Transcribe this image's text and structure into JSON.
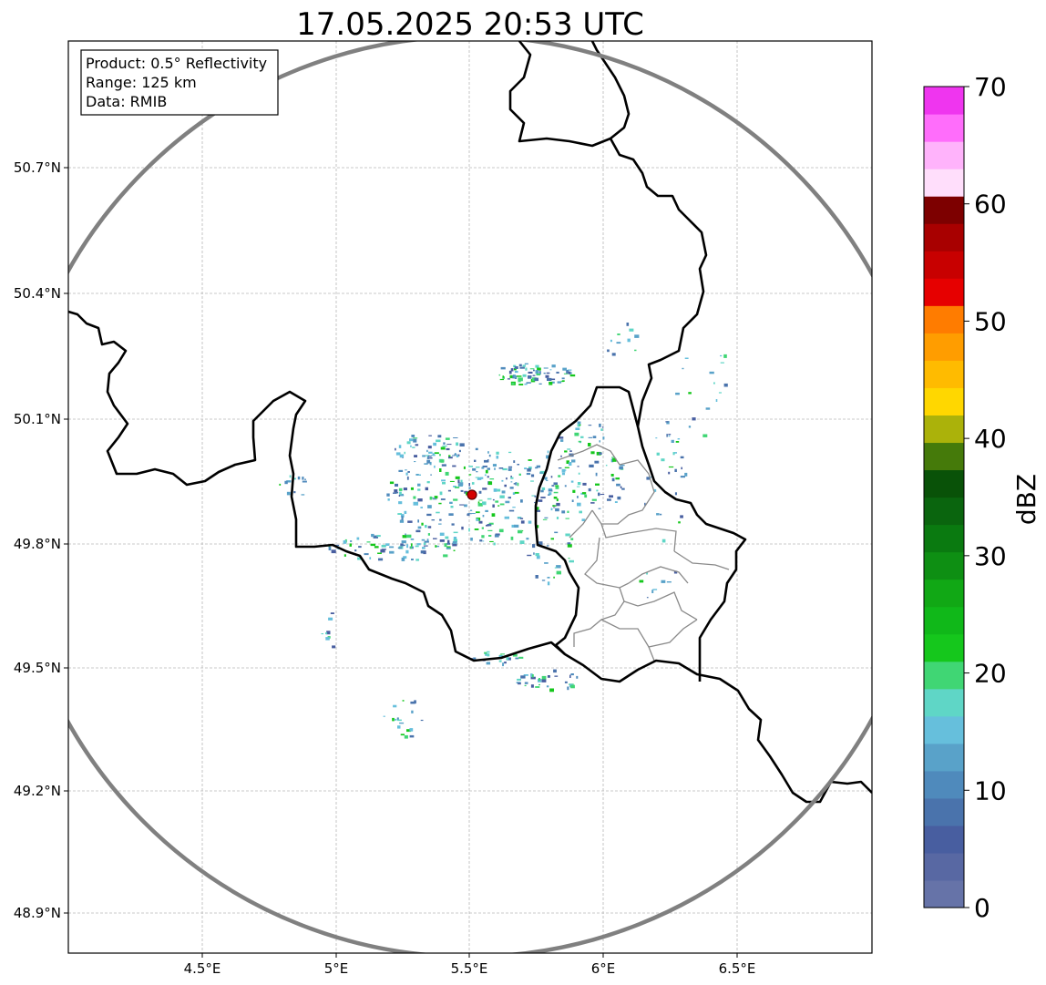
{
  "title": "17.05.2025 20:53 UTC",
  "info_box": {
    "product": "Product: 0.5° Reflectivity",
    "range": "Range: 125 km",
    "data": "Data: RMIB"
  },
  "axes": {
    "x_ticks": [
      "4.5°E",
      "5°E",
      "5.5°E",
      "6°E",
      "6.5°E"
    ],
    "y_ticks": [
      "50.7°N",
      "50.4°N",
      "50.1°N",
      "49.8°N",
      "49.5°N",
      "49.2°N",
      "48.9°N"
    ],
    "lon_range": [
      4.0,
      7.0
    ],
    "lat_range": [
      48.8,
      51.0
    ],
    "grid": true
  },
  "radar_site": {
    "lon": 5.5,
    "lat": 49.915,
    "color": "#d40000"
  },
  "colorbar": {
    "label": "dBZ",
    "min": 0,
    "max": 70,
    "step": 2.5,
    "tick_labels": [
      "0",
      "10",
      "20",
      "30",
      "40",
      "50",
      "60",
      "70"
    ],
    "colors": [
      "#6673a8",
      "#5868a3",
      "#485ea0",
      "#4a73ac",
      "#4f8abc",
      "#59a2c9",
      "#66bfdc",
      "#5fd6c6",
      "#40d674",
      "#15c71c",
      "#10b819",
      "#11a815",
      "#0e8f13",
      "#0a7a10",
      "#0a650e",
      "#095208",
      "#457a0a",
      "#abb20a",
      "#ffd700",
      "#ffbb00",
      "#ff9d00",
      "#ff7c00",
      "#e60000",
      "#c80000",
      "#a80000",
      "#7d0000",
      "#ffdefb",
      "#ffb3fb",
      "#ff6dfb",
      "#ef35ef"
    ]
  },
  "colors": {
    "country_border": "#000000",
    "province_border": "#8a8a8a",
    "range_ring": "#808080",
    "grid": "#b8b8b8"
  }
}
